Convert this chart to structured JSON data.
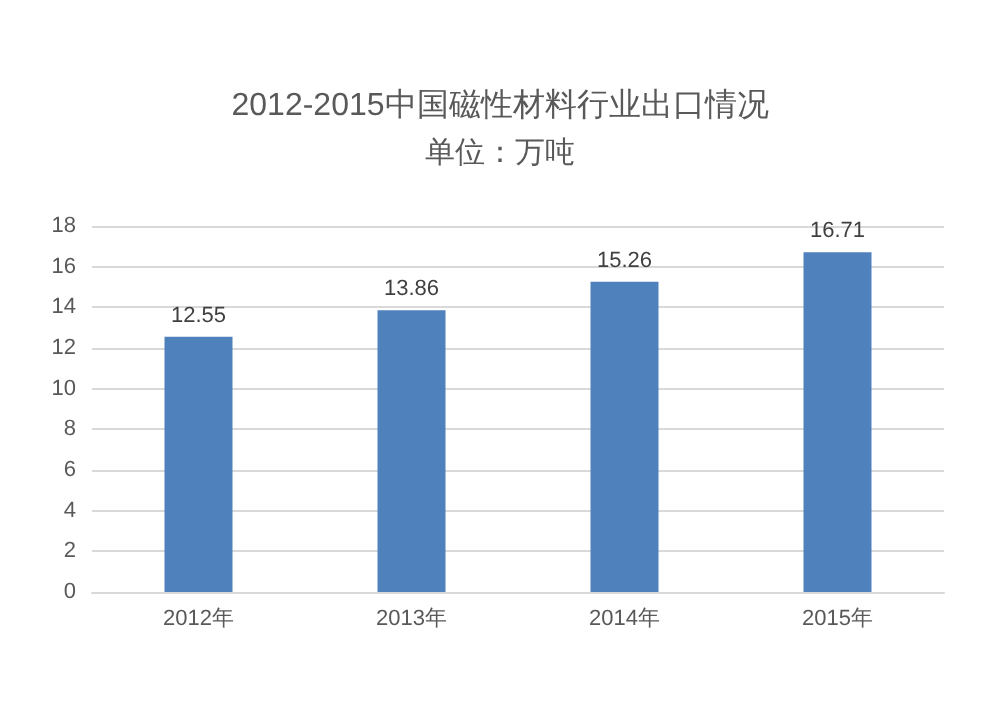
{
  "chart_data": {
    "type": "bar",
    "title": "2012-2015中国磁性材料行业出口情况",
    "subtitle": "单位：万吨",
    "categories": [
      "2012年",
      "2013年",
      "2014年",
      "2015年"
    ],
    "values": [
      12.55,
      13.86,
      15.26,
      16.71
    ],
    "color": "#4f81bd",
    "ylim": [
      0,
      18
    ],
    "yticks": [
      0,
      2,
      4,
      6,
      8,
      10,
      12,
      14,
      16,
      18
    ],
    "grid": true,
    "data_labels": true
  }
}
